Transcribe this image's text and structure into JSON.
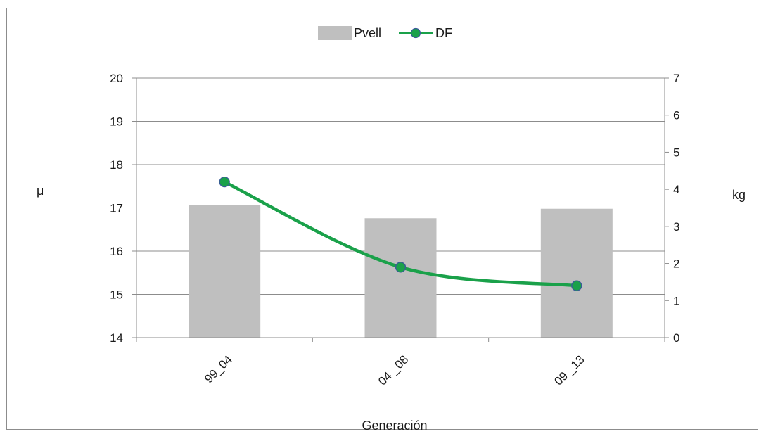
{
  "chart_data": {
    "type": "bar",
    "categories": [
      "99_04",
      "04 _08",
      "09 _13"
    ],
    "x_label": "Generación",
    "y_left_label": "μ",
    "y_right_label": "kg",
    "y_left_ticks": [
      "14",
      "15",
      "16",
      "17",
      "18",
      "19",
      "20"
    ],
    "y_right_ticks": [
      "0",
      "1",
      "2",
      "3",
      "4",
      "5",
      "6",
      "7"
    ],
    "y_left_range": [
      14,
      20
    ],
    "y_right_range": [
      0,
      7
    ],
    "legend_position": "top",
    "grid": true,
    "series": [
      {
        "name": "Pvell",
        "type": "bar",
        "axis": "left",
        "values": [
          17.06,
          16.76,
          16.98
        ],
        "color": "#bfbfbf"
      },
      {
        "name": "DF",
        "type": "line",
        "axis": "right",
        "smooth": true,
        "values": [
          4.2,
          1.9,
          1.4
        ],
        "color": "#1aa14a",
        "marker_color": "#1aa14a",
        "marker_edge": "#3a5a9a"
      }
    ]
  }
}
